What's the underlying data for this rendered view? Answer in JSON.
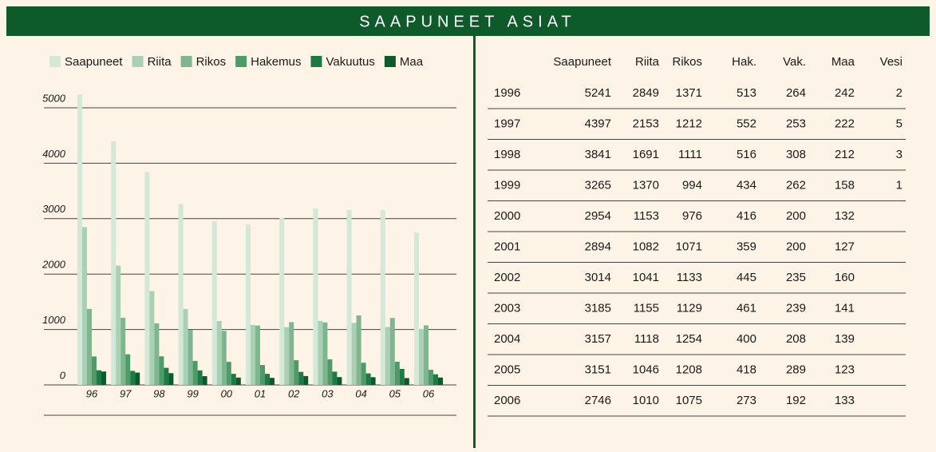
{
  "title": "SAAPUNEET ASIAT",
  "chart_data": {
    "type": "bar",
    "categories": [
      "96",
      "97",
      "98",
      "99",
      "00",
      "01",
      "02",
      "03",
      "04",
      "05",
      "06"
    ],
    "series": [
      {
        "name": "Saapuneet",
        "color": "#d3e8d6",
        "values": [
          5241,
          4397,
          3841,
          3265,
          2954,
          2894,
          3014,
          3185,
          3157,
          3151,
          2746
        ]
      },
      {
        "name": "Riita",
        "color": "#a9d0b2",
        "values": [
          2849,
          2153,
          1691,
          1370,
          1153,
          1082,
          1041,
          1155,
          1118,
          1046,
          1010
        ]
      },
      {
        "name": "Rikos",
        "color": "#80b68f",
        "values": [
          1371,
          1212,
          1111,
          994,
          976,
          1071,
          1133,
          1129,
          1254,
          1208,
          1075
        ]
      },
      {
        "name": "Hakemus",
        "color": "#4f9a69",
        "values": [
          513,
          552,
          516,
          434,
          416,
          359,
          445,
          461,
          400,
          418,
          273
        ]
      },
      {
        "name": "Vakuutus",
        "color": "#1e7a44",
        "values": [
          264,
          253,
          308,
          262,
          200,
          200,
          235,
          239,
          208,
          289,
          192
        ]
      },
      {
        "name": "Maa",
        "color": "#0b5a2a",
        "values": [
          242,
          222,
          212,
          158,
          132,
          127,
          160,
          141,
          139,
          123,
          133
        ]
      }
    ],
    "ylim": [
      0,
      5000
    ],
    "yticks": [
      0,
      1000,
      2000,
      3000,
      4000,
      5000
    ],
    "grid": true
  },
  "table": {
    "header": [
      "Saapuneet",
      "Riita",
      "Rikos",
      "Hak.",
      "Vak.",
      "Maa",
      "Vesi"
    ],
    "rows": [
      [
        "1996",
        5241,
        2849,
        1371,
        513,
        264,
        242,
        2
      ],
      [
        "1997",
        4397,
        2153,
        1212,
        552,
        253,
        222,
        5
      ],
      [
        "1998",
        3841,
        1691,
        1111,
        516,
        308,
        212,
        3
      ],
      [
        "1999",
        3265,
        1370,
        994,
        434,
        262,
        158,
        1
      ],
      [
        "2000",
        2954,
        1153,
        976,
        416,
        200,
        132
      ],
      [
        "2001",
        2894,
        1082,
        1071,
        359,
        200,
        127
      ],
      [
        "2002",
        3014,
        1041,
        1133,
        445,
        235,
        160
      ],
      [
        "2003",
        3185,
        1155,
        1129,
        461,
        239,
        141
      ],
      [
        "2004",
        3157,
        1118,
        1254,
        400,
        208,
        139
      ],
      [
        "2005",
        3151,
        1046,
        1208,
        418,
        289,
        123
      ],
      [
        "2006",
        2746,
        1010,
        1075,
        273,
        192,
        133
      ]
    ]
  }
}
